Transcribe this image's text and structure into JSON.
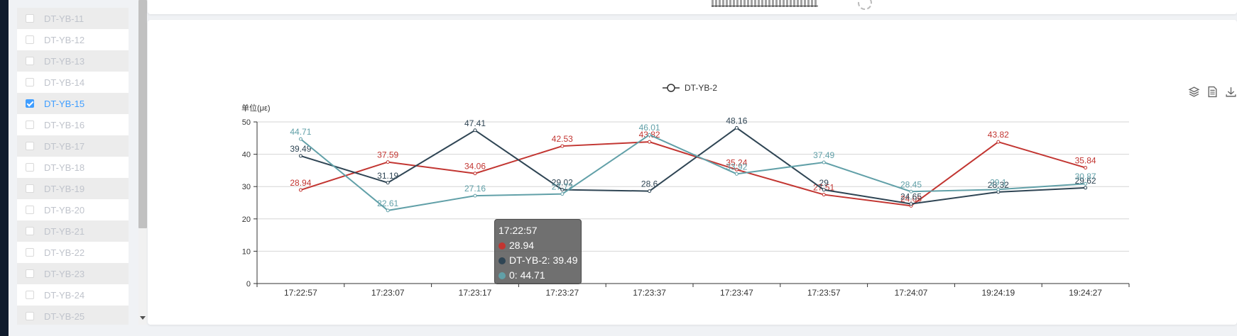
{
  "sidebar": {
    "items": [
      {
        "label": "DT-YB-11",
        "checked": false
      },
      {
        "label": "DT-YB-12",
        "checked": false
      },
      {
        "label": "DT-YB-13",
        "checked": false
      },
      {
        "label": "DT-YB-14",
        "checked": false
      },
      {
        "label": "DT-YB-15",
        "checked": true
      },
      {
        "label": "DT-YB-16",
        "checked": false
      },
      {
        "label": "DT-YB-17",
        "checked": false
      },
      {
        "label": "DT-YB-18",
        "checked": false
      },
      {
        "label": "DT-YB-19",
        "checked": false
      },
      {
        "label": "DT-YB-20",
        "checked": false
      },
      {
        "label": "DT-YB-21",
        "checked": false
      },
      {
        "label": "DT-YB-22",
        "checked": false
      },
      {
        "label": "DT-YB-23",
        "checked": false
      },
      {
        "label": "DT-YB-24",
        "checked": false
      },
      {
        "label": "DT-YB-25",
        "checked": false
      }
    ]
  },
  "toolbox": {
    "icons": [
      "layers-icon",
      "document-icon",
      "download-icon"
    ]
  },
  "tooltip": {
    "time": "17:22:57",
    "rows": [
      {
        "text": "28.94",
        "color": "#c23531"
      },
      {
        "text": "DT-YB-2: 39.49",
        "color": "#2f4554"
      },
      {
        "text": "0: 44.71",
        "color": "#61a0a8"
      }
    ]
  },
  "chart_data": {
    "type": "line",
    "ylabel": "单位(με)",
    "ylim": [
      0,
      50
    ],
    "yticks": [
      0,
      10,
      20,
      30,
      40,
      50
    ],
    "categories": [
      "17:22:57",
      "17:23:07",
      "17:23:17",
      "17:23:27",
      "17:23:37",
      "17:23:47",
      "17:23:57",
      "17:24:07",
      "19:24:19",
      "19:24:27"
    ],
    "legend": [
      "DT-YB-2"
    ],
    "series": [
      {
        "color": "#c23531",
        "values": [
          28.94,
          37.59,
          34.06,
          42.53,
          43.82,
          35.24,
          27.51,
          24.05,
          43.82,
          35.84
        ]
      },
      {
        "name": "DT-YB-2",
        "color": "#2f4554",
        "values": [
          39.49,
          31.19,
          47.41,
          29.02,
          28.6,
          48.16,
          29,
          24.65,
          28.32,
          29.62
        ]
      },
      {
        "color": "#61a0a8",
        "values": [
          44.71,
          22.61,
          27.16,
          27.72,
          46.01,
          33.92,
          37.49,
          28.45,
          29.1,
          30.87
        ]
      }
    ]
  }
}
